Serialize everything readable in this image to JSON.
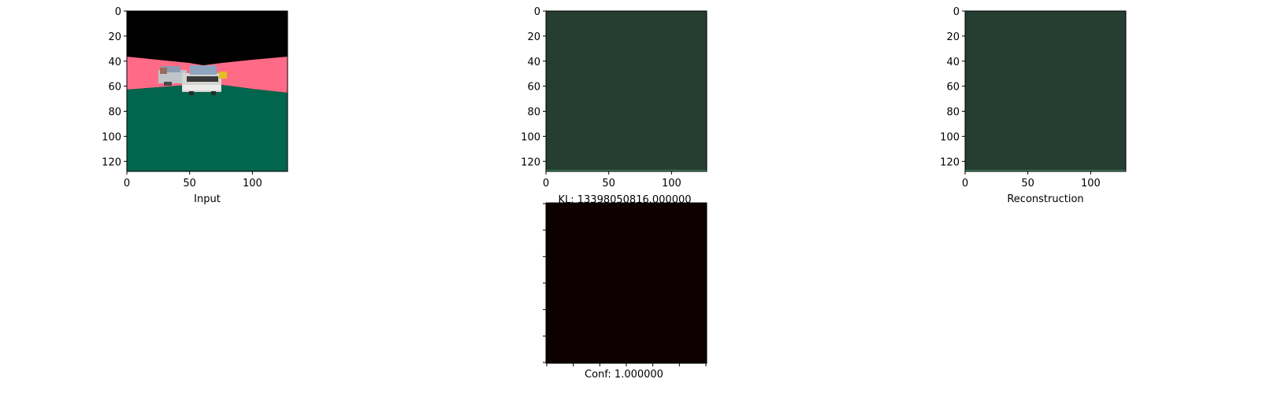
{
  "chart_data": [
    {
      "type": "image",
      "panel": "input",
      "xlabel": "Input",
      "xlim": [
        0,
        128
      ],
      "ylim": [
        128,
        0
      ],
      "xticks": [
        0,
        50,
        100
      ],
      "yticks": [
        0,
        20,
        40,
        60,
        80,
        100,
        120
      ],
      "ytick_labels": [
        "0",
        "20",
        "40",
        "60",
        "80",
        "100",
        "120"
      ],
      "xtick_labels": [
        "0",
        "50",
        "100"
      ],
      "colors": {
        "sky": "#000000",
        "walls": "#ff6b86",
        "floor": "#02654e",
        "car": "#d8d8d8"
      }
    },
    {
      "type": "image",
      "panel": "kl",
      "title": "KL: 13398050816.000000",
      "xlim": [
        0,
        128
      ],
      "ylim": [
        128,
        0
      ],
      "xticks": [
        0,
        50,
        100
      ],
      "yticks": [
        0,
        20,
        40,
        60,
        80,
        100,
        120
      ],
      "ytick_labels": [
        "0",
        "20",
        "40",
        "60",
        "80",
        "100",
        "120"
      ],
      "xtick_labels": [
        "0",
        "50",
        "100"
      ],
      "colors": {
        "fill": "#263d32"
      }
    },
    {
      "type": "image",
      "panel": "reconstruction",
      "xlabel": "Reconstruction",
      "xlim": [
        0,
        128
      ],
      "ylim": [
        128,
        0
      ],
      "xticks": [
        0,
        50,
        100
      ],
      "yticks": [
        0,
        20,
        40,
        60,
        80,
        100,
        120
      ],
      "ytick_labels": [
        "0",
        "20",
        "40",
        "60",
        "80",
        "100",
        "120"
      ],
      "xtick_labels": [
        "0",
        "50",
        "100"
      ],
      "colors": {
        "fill": "#263d32"
      }
    },
    {
      "type": "heatmap",
      "panel": "conf",
      "xlabel": "Conf: 1.000000",
      "tick_count_x": 7,
      "tick_count_y": 7,
      "colors": {
        "fill": "#0d0100"
      }
    }
  ]
}
